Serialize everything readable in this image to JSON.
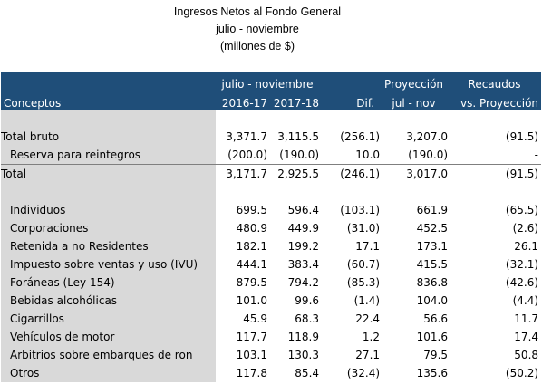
{
  "title": {
    "line1": "Ingresos Netos al Fondo General",
    "line2": "julio - noviembre",
    "line3": "(millones de $)"
  },
  "header": {
    "period_label": "julio - noviembre",
    "proyeccion_label": "Proyección",
    "recaudos_label": "Recaudos",
    "conceptos": "Conceptos",
    "col_2016": "2016-17",
    "col_2017": "2017-18",
    "col_dif": "Dif.",
    "col_julnov": "jul - nov",
    "col_vs": "vs. Proyección"
  },
  "rows_top": [
    {
      "label": "Total bruto",
      "indent": false,
      "v1": "3,371.7",
      "v2": "3,115.5",
      "dif": "(256.1)",
      "proy": "3,207.0",
      "rec": "(91.5)"
    },
    {
      "label": "Reserva para reintegros",
      "indent": true,
      "v1": "(200.0)",
      "v2": "(190.0)",
      "dif": "10.0",
      "proy": "(190.0)",
      "rec": "-"
    },
    {
      "label": "Total",
      "indent": false,
      "v1": "3,171.7",
      "v2": "2,925.5",
      "dif": "(246.1)",
      "proy": "3,017.0",
      "rec": "(91.5)"
    }
  ],
  "rows_detail": [
    {
      "label": "Individuos",
      "v1": "699.5",
      "v2": "596.4",
      "dif": "(103.1)",
      "proy": "661.9",
      "rec": "(65.5)"
    },
    {
      "label": "Corporaciones",
      "v1": "480.9",
      "v2": "449.9",
      "dif": "(31.0)",
      "proy": "452.5",
      "rec": "(2.6)"
    },
    {
      "label": "Retenida a no Residentes",
      "v1": "182.1",
      "v2": "199.2",
      "dif": "17.1",
      "proy": "173.1",
      "rec": "26.1"
    },
    {
      "label": "Impuesto sobre ventas y uso (IVU)",
      "v1": "444.1",
      "v2": "383.4",
      "dif": "(60.7)",
      "proy": "415.5",
      "rec": "(32.1)"
    },
    {
      "label": "Foráneas (Ley 154)",
      "v1": "879.5",
      "v2": "794.2",
      "dif": "(85.3)",
      "proy": "836.8",
      "rec": "(42.6)"
    },
    {
      "label": "Bebidas alcohólicas",
      "v1": "101.0",
      "v2": "99.6",
      "dif": "(1.4)",
      "proy": "104.0",
      "rec": "(4.4)"
    },
    {
      "label": "Cigarrillos",
      "v1": "45.9",
      "v2": "68.3",
      "dif": "22.4",
      "proy": "56.6",
      "rec": "11.7"
    },
    {
      "label": "Vehículos de motor",
      "v1": "117.7",
      "v2": "118.9",
      "dif": "1.2",
      "proy": "101.6",
      "rec": "17.4"
    },
    {
      "label": "Arbitrios sobre embarques de ron",
      "v1": "103.1",
      "v2": "130.3",
      "dif": "27.1",
      "proy": "79.5",
      "rec": "50.8"
    },
    {
      "label": "Otros",
      "v1": "117.8",
      "v2": "85.4",
      "dif": "(32.4)",
      "proy": "135.6",
      "rec": "(50.2)"
    }
  ],
  "colors": {
    "header_bg": "#1f4e79",
    "header_text": "#ffffff",
    "label_col_bg": "#d9d9d9",
    "body_bg": "#ffffff"
  }
}
